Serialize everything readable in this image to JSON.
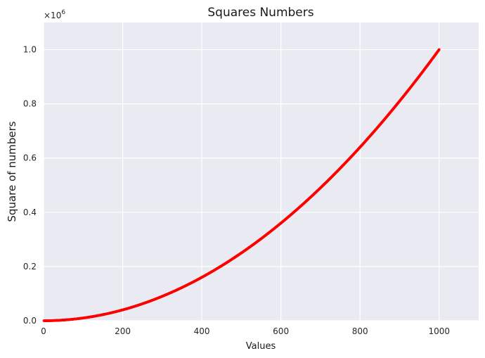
{
  "chart_data": {
    "type": "scatter",
    "title": "Squares Numbers",
    "xlabel": "Values",
    "ylabel": "Square of numbers",
    "xlim": [
      0,
      1100
    ],
    "ylim": [
      0,
      1100000
    ],
    "x_ticks": [
      0,
      200,
      400,
      600,
      800,
      1000
    ],
    "x_tick_labels": [
      "0",
      "200",
      "400",
      "600",
      "800",
      "1000"
    ],
    "y_ticks": [
      0,
      200000,
      400000,
      600000,
      800000,
      1000000
    ],
    "y_tick_labels": [
      "0.0",
      "0.2",
      "0.4",
      "0.6",
      "0.8",
      "1.0"
    ],
    "y_offset_label": "×10",
    "y_offset_exponent": "6",
    "grid": true,
    "background_color": "#eaeaf2",
    "grid_color": "#ffffff",
    "series": [
      {
        "color": "#ff0000",
        "x_start": 1,
        "x_end": 1000,
        "x_step": 1,
        "formula": "y = x^2"
      }
    ]
  }
}
